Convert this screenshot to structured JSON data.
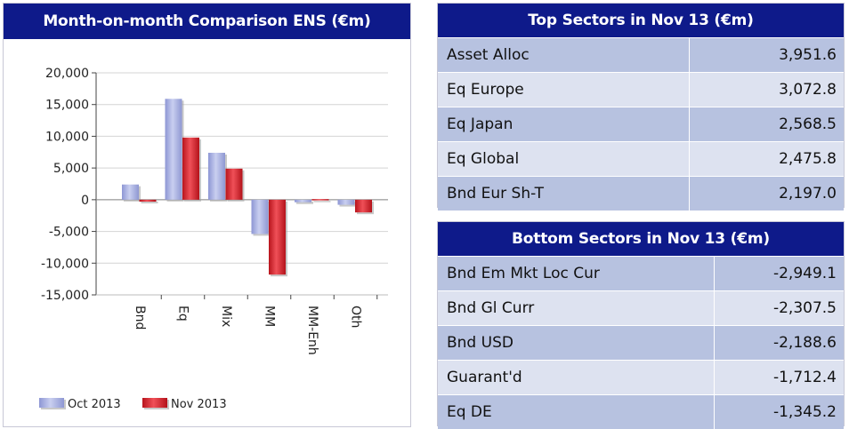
{
  "chart_panel": {
    "title": "Month-on-month Comparison ENS (€m)"
  },
  "chart_data": {
    "type": "bar",
    "categories": [
      "Bnd",
      "Eq",
      "Mix",
      "MM",
      "MM-Enh",
      "Oth"
    ],
    "series": [
      {
        "name": "Oct 2013",
        "values": [
          2400,
          15900,
          7400,
          -5400,
          -400,
          -800
        ],
        "color": "#a4acde"
      },
      {
        "name": "Nov 2013",
        "values": [
          -300,
          9800,
          4900,
          -11800,
          100,
          -2000
        ],
        "color": "#e3262f"
      }
    ],
    "ylim": [
      -15000,
      20000
    ],
    "yticks": [
      "20,000",
      "15,000",
      "10,000",
      "5,000",
      "0",
      "-5,000",
      "-10,000",
      "-15,000"
    ],
    "ytick_values": [
      20000,
      15000,
      10000,
      5000,
      0,
      -5000,
      -10000,
      -15000
    ],
    "grid": true,
    "legend": "bottom-left"
  },
  "top_sectors": {
    "title": "Top Sectors in Nov 13 (€m)",
    "rows": [
      {
        "name": "Asset Alloc",
        "value": "3,951.6"
      },
      {
        "name": "Eq Europe",
        "value": "3,072.8"
      },
      {
        "name": "Eq Japan",
        "value": "2,568.5"
      },
      {
        "name": "Eq Global",
        "value": "2,475.8"
      },
      {
        "name": "Bnd Eur Sh-T",
        "value": "2,197.0"
      }
    ]
  },
  "bottom_sectors": {
    "title": "Bottom Sectors in Nov 13 (€m)",
    "rows": [
      {
        "name": "Bnd Em Mkt Loc Cur",
        "value": "-2,949.1"
      },
      {
        "name": "Bnd Gl Curr",
        "value": "-2,307.5"
      },
      {
        "name": "Bnd USD",
        "value": "-2,188.6"
      },
      {
        "name": "Guarant'd",
        "value": "-1,712.4"
      },
      {
        "name": "Eq DE",
        "value": "-1,345.2"
      }
    ]
  }
}
